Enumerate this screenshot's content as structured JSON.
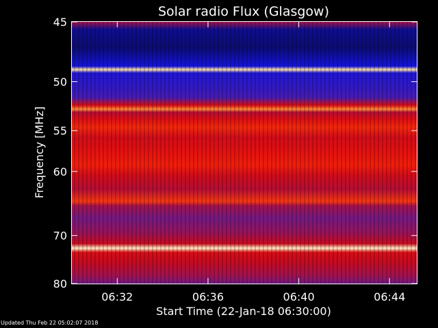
{
  "footer": {
    "updated": "Updated Thu Feb 22 05:02:07 2018"
  },
  "chart_data": {
    "type": "heatmap",
    "title": "Solar radio Flux (Glasgow)",
    "xlabel": "Start Time (22-Jan-18 06:30:00)",
    "ylabel": "Frequency [MHz]",
    "x_unit": "minutes after 06:30:00",
    "xlim": [
      0,
      15.2
    ],
    "ylim_mhz": [
      45,
      80
    ],
    "y_scale": "reciprocal",
    "x_ticks": [
      {
        "label": "06:32",
        "value": 2
      },
      {
        "label": "06:36",
        "value": 6
      },
      {
        "label": "06:40",
        "value": 10
      },
      {
        "label": "06:44",
        "value": 14
      }
    ],
    "y_ticks": [
      {
        "label": "45",
        "value": 45
      },
      {
        "label": "50",
        "value": 50
      },
      {
        "label": "55",
        "value": 55
      },
      {
        "label": "60",
        "value": 60
      },
      {
        "label": "70",
        "value": 70
      },
      {
        "label": "80",
        "value": 80
      }
    ],
    "colormap": "blue-red-yellow-white",
    "intensity_scale": [
      0,
      1
    ],
    "frequency_profile": [
      {
        "mhz": 45.0,
        "intensity": 0.45
      },
      {
        "mhz": 45.6,
        "intensity": 0.05
      },
      {
        "mhz": 47.0,
        "intensity": 0.02
      },
      {
        "mhz": 48.6,
        "intensity": 0.12
      },
      {
        "mhz": 48.9,
        "intensity": 0.95
      },
      {
        "mhz": 49.2,
        "intensity": 0.15
      },
      {
        "mhz": 50.5,
        "intensity": 0.2
      },
      {
        "mhz": 51.5,
        "intensity": 0.25
      },
      {
        "mhz": 52.3,
        "intensity": 0.6
      },
      {
        "mhz": 52.7,
        "intensity": 0.85
      },
      {
        "mhz": 53.0,
        "intensity": 0.5
      },
      {
        "mhz": 53.8,
        "intensity": 0.62
      },
      {
        "mhz": 54.6,
        "intensity": 0.72
      },
      {
        "mhz": 55.8,
        "intensity": 0.58
      },
      {
        "mhz": 57.5,
        "intensity": 0.64
      },
      {
        "mhz": 59.2,
        "intensity": 0.7
      },
      {
        "mhz": 60.5,
        "intensity": 0.58
      },
      {
        "mhz": 62.5,
        "intensity": 0.5
      },
      {
        "mhz": 64.3,
        "intensity": 0.75
      },
      {
        "mhz": 65.0,
        "intensity": 0.45
      },
      {
        "mhz": 67.0,
        "intensity": 0.35
      },
      {
        "mhz": 69.5,
        "intensity": 0.42
      },
      {
        "mhz": 71.5,
        "intensity": 0.55
      },
      {
        "mhz": 72.4,
        "intensity": 0.97
      },
      {
        "mhz": 73.2,
        "intensity": 0.6
      },
      {
        "mhz": 75.0,
        "intensity": 0.55
      },
      {
        "mhz": 78.0,
        "intensity": 0.45
      },
      {
        "mhz": 80.0,
        "intensity": 0.35
      }
    ]
  }
}
